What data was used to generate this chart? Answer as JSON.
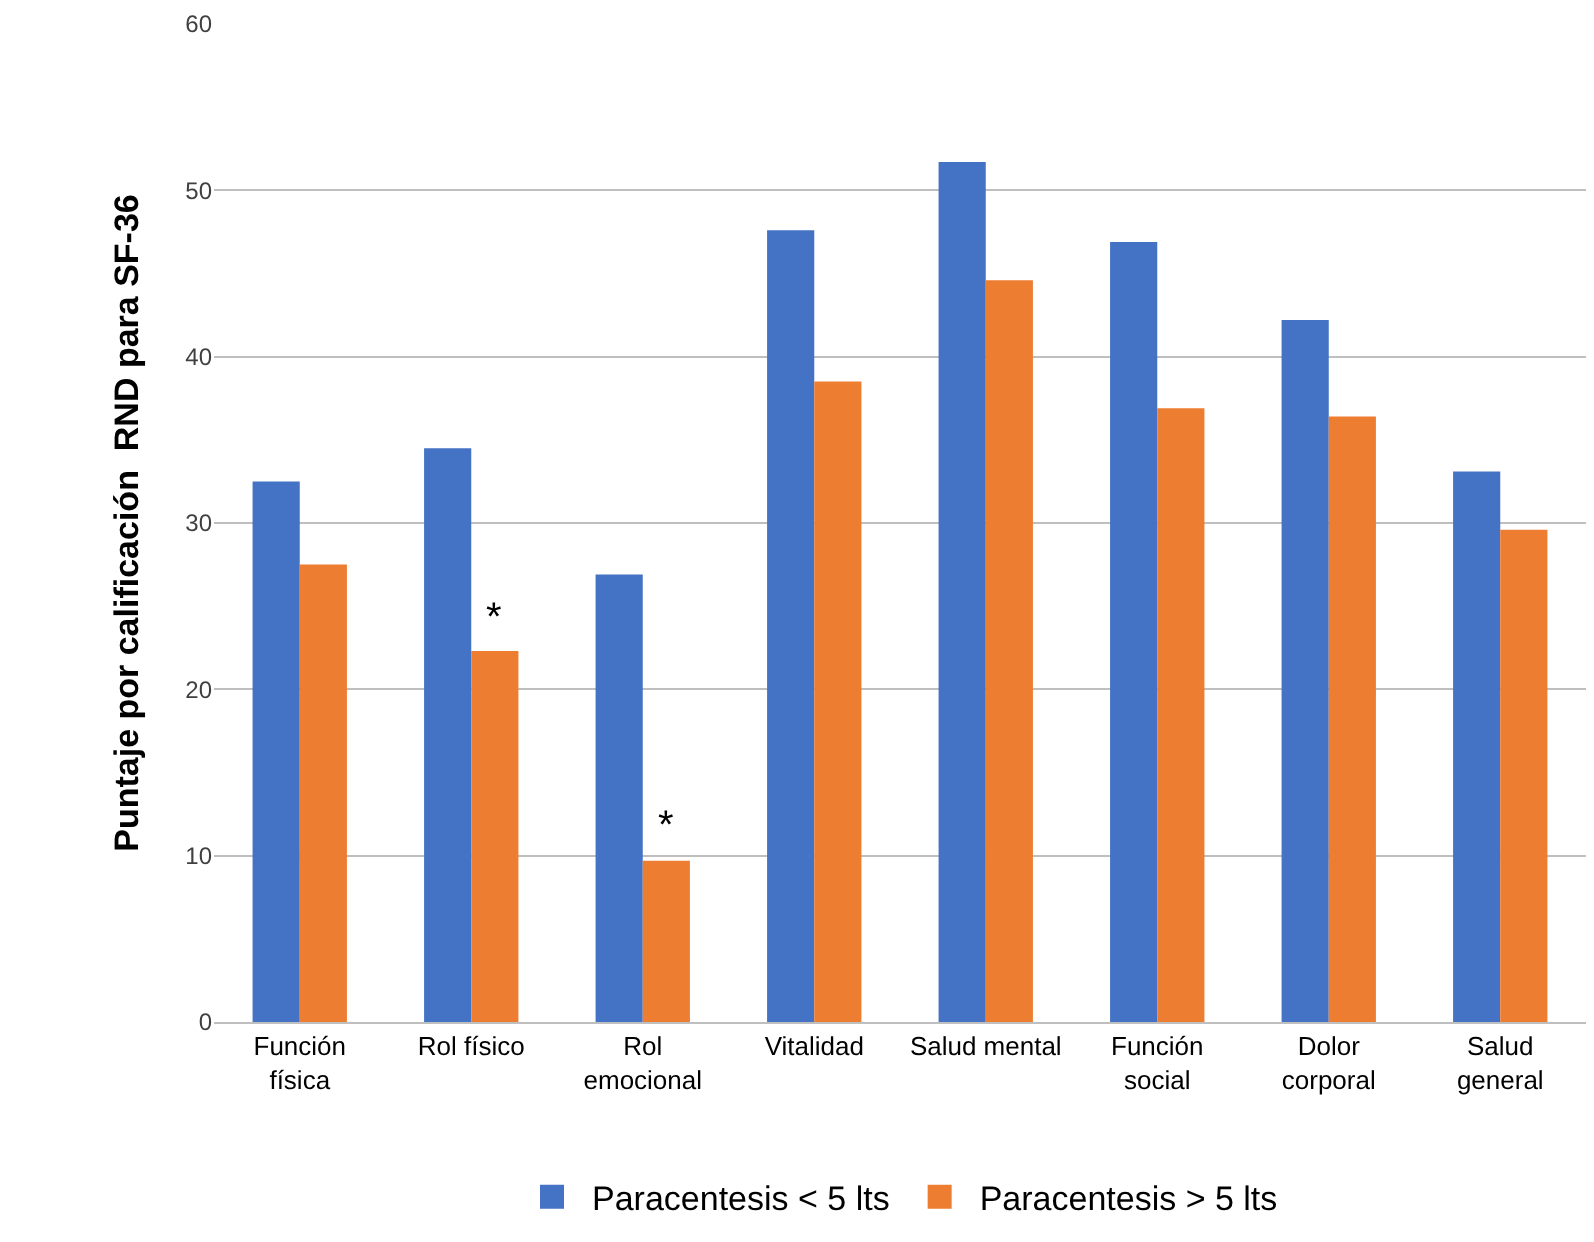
{
  "chart_data": {
    "type": "bar",
    "ylabel": "Puntaje por calificación  RND para SF-36",
    "categories": [
      "Función\nfísica",
      "Rol físico",
      "Rol\nemocional",
      "Vitalidad",
      "Salud mental",
      "Función\nsocial",
      "Dolor\ncorporal",
      "Salud\ngeneral"
    ],
    "series": [
      {
        "name": "Paracentesis < 5 lts",
        "color": "#4472c4",
        "values": [
          32.5,
          34.5,
          26.9,
          47.6,
          51.7,
          46.9,
          42.2,
          33.1
        ]
      },
      {
        "name": "Paracentesis > 5 lts",
        "color": "#ed7d31",
        "values": [
          27.5,
          22.3,
          9.7,
          38.5,
          44.6,
          36.9,
          36.4,
          29.6
        ]
      }
    ],
    "ylim": [
      0,
      60
    ],
    "yticks": [
      0,
      10,
      20,
      30,
      40,
      50,
      60
    ],
    "grid": "y",
    "legend": "bottom",
    "annotations": [
      {
        "text": "*",
        "x": "Rol físico",
        "y": 22.3
      },
      {
        "text": "*",
        "x": "Rol\nemocional",
        "y": 9.7
      }
    ]
  }
}
